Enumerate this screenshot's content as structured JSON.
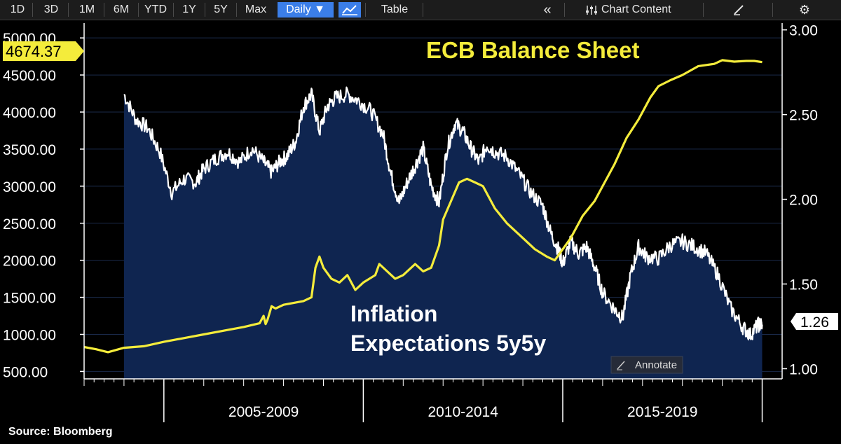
{
  "toolbar": {
    "ranges": [
      "1D",
      "3D",
      "1M",
      "6M",
      "YTD",
      "1Y",
      "5Y",
      "Max"
    ],
    "frequency": "Daily ▼",
    "chart_icon": "line-chart-icon",
    "table_label": "Table",
    "collapse_icon": "double-chevron-left-icon",
    "chart_content_label": "Chart Content",
    "chart_content_icon": "sliders-icon",
    "edit_icon": "edit-icon",
    "settings_icon": "gear-icon"
  },
  "annotate_label": "Annotate",
  "source": "Source:  Bloomberg",
  "colors": {
    "ecb": "#f4ec3b",
    "inflation_line": "#ffffff",
    "inflation_fill": "#0f2550",
    "background": "#000000",
    "current_left_bg": "#f4ec3b",
    "current_right_bg": "#ffffff"
  },
  "chart_data": {
    "type": "line",
    "x_labels": [
      "2005-2009",
      "2010-2014",
      "2015-2019"
    ],
    "left_axis": {
      "ticks": [
        "5000.00",
        "4500.00",
        "4000.00",
        "3500.00",
        "3000.00",
        "2500.00",
        "2000.00",
        "1500.00",
        "1000.00",
        "500.00"
      ],
      "range": [
        400,
        5200
      ],
      "current": "4674.37"
    },
    "right_axis": {
      "ticks": [
        "3.00",
        "2.50",
        "2.00",
        "1.50",
        "1.00"
      ],
      "range": [
        0.94,
        3.04
      ],
      "current": "1.26"
    },
    "annotations": {
      "ecb": "ECB Balance Sheet",
      "inflation_1": "Inflation",
      "inflation_2": "Expectations 5y5y"
    },
    "grid": true,
    "series": [
      {
        "label": "ECB Balance Sheet",
        "axis": "left",
        "points": [
          [
            2003.0,
            830
          ],
          [
            2003.3,
            800
          ],
          [
            2003.6,
            760
          ],
          [
            2004.0,
            820
          ],
          [
            2004.5,
            840
          ],
          [
            2005.0,
            900
          ],
          [
            2005.5,
            950
          ],
          [
            2006.0,
            1000
          ],
          [
            2006.5,
            1050
          ],
          [
            2007.0,
            1100
          ],
          [
            2007.4,
            1150
          ],
          [
            2007.5,
            1250
          ],
          [
            2007.55,
            1140
          ],
          [
            2007.6,
            1200
          ],
          [
            2007.7,
            1380
          ],
          [
            2007.8,
            1350
          ],
          [
            2008.0,
            1400
          ],
          [
            2008.5,
            1450
          ],
          [
            2008.7,
            1500
          ],
          [
            2008.8,
            1900
          ],
          [
            2008.9,
            2050
          ],
          [
            2009.0,
            1900
          ],
          [
            2009.2,
            1750
          ],
          [
            2009.4,
            1700
          ],
          [
            2009.6,
            1800
          ],
          [
            2009.8,
            1600
          ],
          [
            2010.0,
            1700
          ],
          [
            2010.3,
            1800
          ],
          [
            2010.4,
            1950
          ],
          [
            2010.6,
            1850
          ],
          [
            2010.8,
            1750
          ],
          [
            2011.0,
            1800
          ],
          [
            2011.3,
            1950
          ],
          [
            2011.5,
            1850
          ],
          [
            2011.7,
            1900
          ],
          [
            2011.9,
            2200
          ],
          [
            2012.0,
            2550
          ],
          [
            2012.2,
            2800
          ],
          [
            2012.4,
            3050
          ],
          [
            2012.6,
            3100
          ],
          [
            2012.8,
            3050
          ],
          [
            2013.0,
            3000
          ],
          [
            2013.3,
            2700
          ],
          [
            2013.6,
            2500
          ],
          [
            2014.0,
            2300
          ],
          [
            2014.3,
            2150
          ],
          [
            2014.6,
            2050
          ],
          [
            2014.8,
            2000
          ],
          [
            2015.0,
            2150
          ],
          [
            2015.2,
            2300
          ],
          [
            2015.5,
            2600
          ],
          [
            2015.8,
            2800
          ],
          [
            2016.0,
            3000
          ],
          [
            2016.3,
            3300
          ],
          [
            2016.6,
            3650
          ],
          [
            2016.9,
            3900
          ],
          [
            2017.0,
            4000
          ],
          [
            2017.2,
            4200
          ],
          [
            2017.4,
            4350
          ],
          [
            2017.7,
            4430
          ],
          [
            2018.0,
            4500
          ],
          [
            2018.4,
            4620
          ],
          [
            2018.8,
            4650
          ],
          [
            2019.0,
            4700
          ],
          [
            2019.3,
            4680
          ],
          [
            2019.6,
            4690
          ],
          [
            2019.8,
            4690
          ],
          [
            2020.0,
            4674
          ]
        ]
      },
      {
        "label": "Inflation Expectations 5y5y",
        "axis": "right",
        "points": [
          [
            2004.0,
            2.62
          ],
          [
            2004.3,
            2.47
          ],
          [
            2004.6,
            2.42
          ],
          [
            2004.9,
            2.28
          ],
          [
            2005.2,
            2.04
          ],
          [
            2005.5,
            2.12
          ],
          [
            2005.8,
            2.1
          ],
          [
            2006.0,
            2.18
          ],
          [
            2006.3,
            2.24
          ],
          [
            2006.6,
            2.28
          ],
          [
            2006.9,
            2.22
          ],
          [
            2007.2,
            2.3
          ],
          [
            2007.5,
            2.22
          ],
          [
            2007.7,
            2.16
          ],
          [
            2007.9,
            2.22
          ],
          [
            2008.1,
            2.26
          ],
          [
            2008.3,
            2.34
          ],
          [
            2008.5,
            2.55
          ],
          [
            2008.7,
            2.62
          ],
          [
            2008.9,
            2.4
          ],
          [
            2009.1,
            2.55
          ],
          [
            2009.3,
            2.6
          ],
          [
            2009.6,
            2.62
          ],
          [
            2009.9,
            2.58
          ],
          [
            2010.2,
            2.52
          ],
          [
            2010.5,
            2.38
          ],
          [
            2010.7,
            2.14
          ],
          [
            2010.9,
            1.98
          ],
          [
            2011.1,
            2.1
          ],
          [
            2011.3,
            2.2
          ],
          [
            2011.5,
            2.3
          ],
          [
            2011.7,
            2.08
          ],
          [
            2011.9,
            1.98
          ],
          [
            2012.1,
            2.3
          ],
          [
            2012.3,
            2.45
          ],
          [
            2012.5,
            2.4
          ],
          [
            2012.7,
            2.3
          ],
          [
            2012.9,
            2.22
          ],
          [
            2013.1,
            2.32
          ],
          [
            2013.3,
            2.28
          ],
          [
            2013.6,
            2.25
          ],
          [
            2013.9,
            2.15
          ],
          [
            2014.2,
            2.04
          ],
          [
            2014.5,
            1.96
          ],
          [
            2014.7,
            1.8
          ],
          [
            2014.9,
            1.7
          ],
          [
            2015.0,
            1.62
          ],
          [
            2015.2,
            1.75
          ],
          [
            2015.4,
            1.68
          ],
          [
            2015.6,
            1.72
          ],
          [
            2015.8,
            1.6
          ],
          [
            2016.0,
            1.45
          ],
          [
            2016.3,
            1.35
          ],
          [
            2016.5,
            1.3
          ],
          [
            2016.7,
            1.55
          ],
          [
            2016.9,
            1.72
          ],
          [
            2017.1,
            1.66
          ],
          [
            2017.4,
            1.65
          ],
          [
            2017.7,
            1.73
          ],
          [
            2018.0,
            1.75
          ],
          [
            2018.3,
            1.72
          ],
          [
            2018.6,
            1.68
          ],
          [
            2018.9,
            1.55
          ],
          [
            2019.2,
            1.36
          ],
          [
            2019.5,
            1.25
          ],
          [
            2019.7,
            1.2
          ],
          [
            2019.9,
            1.26
          ],
          [
            2020.0,
            1.26
          ]
        ]
      }
    ]
  }
}
